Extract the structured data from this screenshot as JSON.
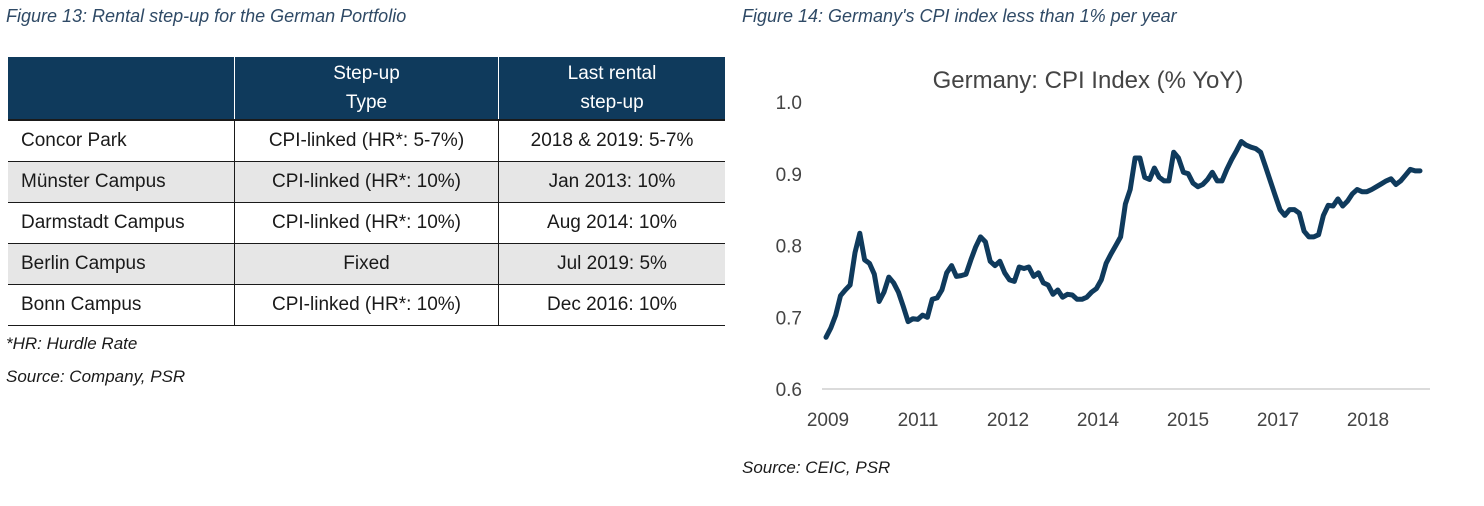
{
  "figure13": {
    "caption": "Figure 13: Rental step-up for the German Portfolio",
    "headers": [
      "",
      "Step-up\nType",
      "Last rental\nstep-up"
    ],
    "rows": [
      [
        "Concor Park",
        "CPI-linked (HR*: 5-7%)",
        "2018 & 2019: 5-7%"
      ],
      [
        "Münster Campus",
        "CPI-linked (HR*: 10%)",
        "Jan 2013: 10%"
      ],
      [
        "Darmstadt Campus",
        "CPI-linked (HR*: 10%)",
        "Aug 2014: 10%"
      ],
      [
        "Berlin Campus",
        "Fixed",
        "Jul 2019: 5%"
      ],
      [
        "Bonn Campus",
        "CPI-linked (HR*: 10%)",
        "Dec 2016: 10%"
      ]
    ],
    "footnote": "*HR: Hurdle Rate",
    "source": "Source: Company, PSR"
  },
  "figure14": {
    "caption": "Figure 14: Germany's CPI index less than 1% per year",
    "source": "Source: CEIC, PSR"
  },
  "chart_data": {
    "type": "line",
    "title": "Germany: CPI Index (% YoY)",
    "xlabel": "",
    "ylabel": "",
    "ylim": [
      0.6,
      1.0
    ],
    "yticks": [
      "0.6",
      "0.7",
      "0.8",
      "0.9",
      "1.0"
    ],
    "xticks": [
      "2009",
      "2011",
      "2012",
      "2014",
      "2015",
      "2017",
      "2018"
    ],
    "grid": false,
    "line_color": "#0f3a5c",
    "series": [
      {
        "values": [
          0.672,
          0.685,
          0.703,
          0.73,
          0.738,
          0.745,
          0.79,
          0.817,
          0.78,
          0.775,
          0.76,
          0.722,
          0.735,
          0.756,
          0.748,
          0.735,
          0.715,
          0.694,
          0.698,
          0.697,
          0.703,
          0.7,
          0.725,
          0.727,
          0.738,
          0.762,
          0.772,
          0.757,
          0.758,
          0.76,
          0.78,
          0.798,
          0.812,
          0.805,
          0.778,
          0.772,
          0.778,
          0.762,
          0.752,
          0.75,
          0.77,
          0.768,
          0.77,
          0.757,
          0.762,
          0.748,
          0.745,
          0.732,
          0.738,
          0.728,
          0.732,
          0.731,
          0.725,
          0.725,
          0.728,
          0.735,
          0.74,
          0.752,
          0.775,
          0.788,
          0.8,
          0.812,
          0.858,
          0.878,
          0.922,
          0.922,
          0.895,
          0.892,
          0.908,
          0.895,
          0.89,
          0.89,
          0.93,
          0.922,
          0.902,
          0.9,
          0.887,
          0.882,
          0.885,
          0.892,
          0.902,
          0.89,
          0.89,
          0.906,
          0.92,
          0.932,
          0.945,
          0.94,
          0.937,
          0.935,
          0.93,
          0.91,
          0.89,
          0.87,
          0.85,
          0.842,
          0.85,
          0.85,
          0.845,
          0.82,
          0.812,
          0.812,
          0.815,
          0.842,
          0.856,
          0.855,
          0.865,
          0.855,
          0.862,
          0.872,
          0.878,
          0.875,
          0.875,
          0.878,
          0.882,
          0.886,
          0.89,
          0.893,
          0.885,
          0.89,
          0.898,
          0.906,
          0.904,
          0.904
        ]
      }
    ]
  }
}
